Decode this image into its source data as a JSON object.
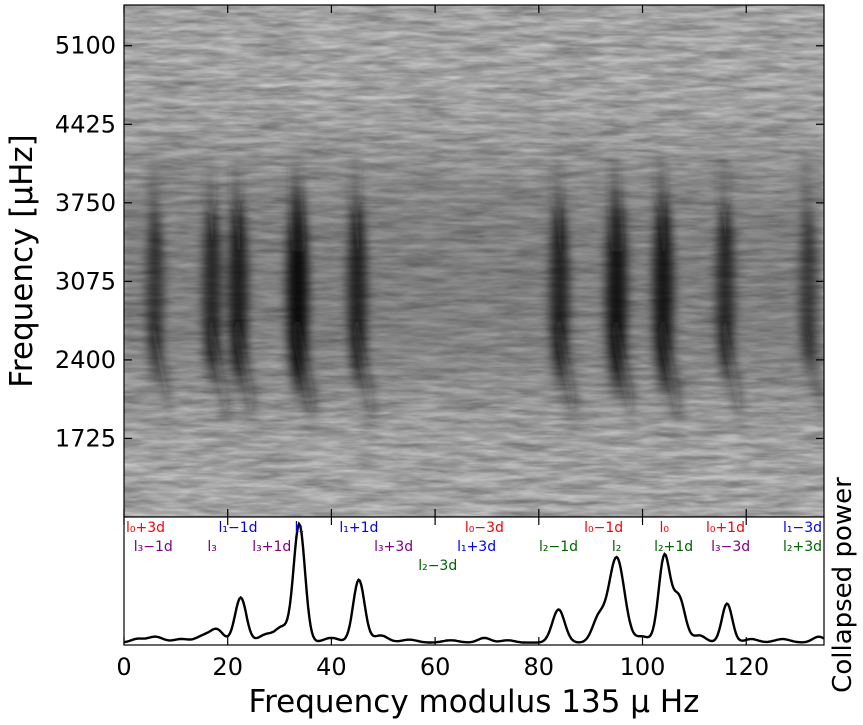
{
  "chart_data": [
    {
      "type": "heatmap",
      "title": "",
      "xlabel": "",
      "ylabel": "Frequency [μHz]",
      "ylim": [
        1050,
        5450
      ],
      "xlim": [
        0,
        135
      ],
      "yticks": [
        1725,
        2400,
        3075,
        3750,
        4425,
        5100
      ],
      "yticklabels": [
        "1725",
        "2400",
        "3075",
        "3750",
        "4425",
        "5100"
      ],
      "colormap": "grayscale (dark = high power)",
      "ridges": [
        {
          "x": 6,
          "strength": 0.45
        },
        {
          "x": 17,
          "strength": 0.6
        },
        {
          "x": 22,
          "strength": 0.75
        },
        {
          "x": 33.5,
          "strength": 1.0
        },
        {
          "x": 45,
          "strength": 0.7
        },
        {
          "x": 84,
          "strength": 0.7
        },
        {
          "x": 95,
          "strength": 0.9
        },
        {
          "x": 104,
          "strength": 0.85
        },
        {
          "x": 116,
          "strength": 0.6
        },
        {
          "x": 132,
          "strength": 0.4
        }
      ],
      "power_center_freq": 3075
    },
    {
      "type": "line",
      "title": "",
      "xlabel": "Frequency modulus 135 μ Hz",
      "ylabel": "Collapsed power",
      "xlim": [
        0,
        135
      ],
      "ylim": [
        0,
        1.08
      ],
      "xticks": [
        0,
        20,
        40,
        60,
        80,
        100,
        120
      ],
      "xticklabels": [
        "0",
        "20",
        "40",
        "60",
        "80",
        "100",
        "120"
      ],
      "yticks_visible": false,
      "peaks": [
        {
          "x": 2.5,
          "amp": 0.03,
          "w": 1.2
        },
        {
          "x": 6,
          "amp": 0.05,
          "w": 1.5
        },
        {
          "x": 11,
          "amp": 0.03,
          "w": 1.5
        },
        {
          "x": 15.5,
          "amp": 0.06,
          "w": 1.5
        },
        {
          "x": 18,
          "amp": 0.1,
          "w": 1.2
        },
        {
          "x": 22.5,
          "amp": 0.38,
          "w": 1.1
        },
        {
          "x": 27.5,
          "amp": 0.07,
          "w": 1.5
        },
        {
          "x": 30.5,
          "amp": 0.12,
          "w": 1.2
        },
        {
          "x": 33.8,
          "amp": 1.0,
          "w": 1.1
        },
        {
          "x": 40,
          "amp": 0.04,
          "w": 1.5
        },
        {
          "x": 45.3,
          "amp": 0.53,
          "w": 1.1
        },
        {
          "x": 49.5,
          "amp": 0.06,
          "w": 1.4
        },
        {
          "x": 55,
          "amp": 0.025,
          "w": 1.5
        },
        {
          "x": 63,
          "amp": 0.02,
          "w": 1.5
        },
        {
          "x": 69.5,
          "amp": 0.04,
          "w": 1.2
        },
        {
          "x": 74,
          "amp": 0.02,
          "w": 1.3
        },
        {
          "x": 83.8,
          "amp": 0.28,
          "w": 1.2
        },
        {
          "x": 91.5,
          "amp": 0.2,
          "w": 1.2
        },
        {
          "x": 95,
          "amp": 0.72,
          "w": 1.5
        },
        {
          "x": 100,
          "amp": 0.05,
          "w": 1.2
        },
        {
          "x": 104.2,
          "amp": 0.72,
          "w": 1.1
        },
        {
          "x": 107,
          "amp": 0.38,
          "w": 1.2
        },
        {
          "x": 111,
          "amp": 0.06,
          "w": 1.2
        },
        {
          "x": 116.3,
          "amp": 0.33,
          "w": 1.0
        },
        {
          "x": 121,
          "amp": 0.03,
          "w": 1.3
        },
        {
          "x": 127,
          "amp": 0.03,
          "w": 1.5
        },
        {
          "x": 134,
          "amp": 0.05,
          "w": 1.2
        }
      ],
      "baseline": 0.02,
      "annotations": [
        {
          "text": "l₀+3d",
          "x": 0,
          "row": 0,
          "color": "#ff0000",
          "align": "start"
        },
        {
          "text": "l₁−1d",
          "x": 22,
          "row": 0,
          "color": "#0000ff",
          "align": "middle"
        },
        {
          "text": "l₁",
          "x": 33.8,
          "row": 0,
          "color": "#0000ff",
          "align": "middle"
        },
        {
          "text": "l₁+1d",
          "x": 45.3,
          "row": 0,
          "color": "#0000ff",
          "align": "middle"
        },
        {
          "text": "l₀−3d",
          "x": 69.5,
          "row": 0,
          "color": "#ff0000",
          "align": "middle"
        },
        {
          "text": "l₀−1d",
          "x": 92.5,
          "row": 0,
          "color": "#ff0000",
          "align": "middle"
        },
        {
          "text": "l₀",
          "x": 104.2,
          "row": 0,
          "color": "#ff0000",
          "align": "middle"
        },
        {
          "text": "l₀+1d",
          "x": 116,
          "row": 0,
          "color": "#ff0000",
          "align": "middle"
        },
        {
          "text": "l₁−3d",
          "x": 135,
          "row": 0,
          "color": "#0000ff",
          "align": "end"
        },
        {
          "text": "l₃−1d",
          "x": 1.5,
          "row": 1,
          "color": "#800080",
          "align": "start"
        },
        {
          "text": "l₃",
          "x": 17,
          "row": 1,
          "color": "#800080",
          "align": "middle"
        },
        {
          "text": "l₃+1d",
          "x": 28.5,
          "row": 1,
          "color": "#800080",
          "align": "middle"
        },
        {
          "text": "l₃+3d",
          "x": 52,
          "row": 1,
          "color": "#800080",
          "align": "middle"
        },
        {
          "text": "l₁+3d",
          "x": 68,
          "row": 1,
          "color": "#0000ff",
          "align": "middle"
        },
        {
          "text": "l₂−1d",
          "x": 83.8,
          "row": 1,
          "color": "#006400",
          "align": "middle"
        },
        {
          "text": "l₂",
          "x": 95,
          "row": 1,
          "color": "#006400",
          "align": "middle"
        },
        {
          "text": "l₂+1d",
          "x": 106,
          "row": 1,
          "color": "#006400",
          "align": "middle"
        },
        {
          "text": "l₃−3d",
          "x": 117,
          "row": 1,
          "color": "#800080",
          "align": "middle"
        },
        {
          "text": "l₂+3d",
          "x": 135,
          "row": 1,
          "color": "#006400",
          "align": "end"
        },
        {
          "text": "l₂−3d",
          "x": 60.5,
          "row": 2,
          "color": "#006400",
          "align": "middle"
        }
      ]
    }
  ]
}
